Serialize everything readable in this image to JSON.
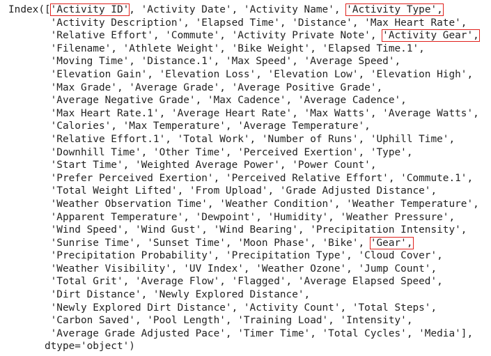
{
  "output": {
    "lines": [
      [
        {
          "t": "Index(["
        },
        {
          "t": "'Activity ID'",
          "hl": true
        },
        {
          "t": ", 'Activity Date', 'Activity Name', "
        },
        {
          "t": "'Activity Type',",
          "hl": true
        }
      ],
      [
        {
          "t": "       'Activity Description', 'Elapsed Time', 'Distance', 'Max Heart Rate',"
        }
      ],
      [
        {
          "t": "       'Relative Effort', 'Commute', 'Activity Private Note', "
        },
        {
          "t": "'Activity Gear',",
          "hl": true
        }
      ],
      [
        {
          "t": "       'Filename', 'Athlete Weight', 'Bike Weight', 'Elapsed Time.1',"
        }
      ],
      [
        {
          "t": "       'Moving Time', 'Distance.1', 'Max Speed', 'Average Speed',"
        }
      ],
      [
        {
          "t": "       'Elevation Gain', 'Elevation Loss', 'Elevation Low', 'Elevation High',"
        }
      ],
      [
        {
          "t": "       'Max Grade', 'Average Grade', 'Average Positive Grade',"
        }
      ],
      [
        {
          "t": "       'Average Negative Grade', 'Max Cadence', 'Average Cadence',"
        }
      ],
      [
        {
          "t": "       'Max Heart Rate.1', 'Average Heart Rate', 'Max Watts', 'Average Watts',"
        }
      ],
      [
        {
          "t": "       'Calories', 'Max Temperature', 'Average Temperature',"
        }
      ],
      [
        {
          "t": "       'Relative Effort.1', 'Total Work', 'Number of Runs', 'Uphill Time',"
        }
      ],
      [
        {
          "t": "       'Downhill Time', 'Other Time', 'Perceived Exertion', 'Type',"
        }
      ],
      [
        {
          "t": "       'Start Time', 'Weighted Average Power', 'Power Count',"
        }
      ],
      [
        {
          "t": "       'Prefer Perceived Exertion', 'Perceived Relative Effort', 'Commute.1',"
        }
      ],
      [
        {
          "t": "       'Total Weight Lifted', 'From Upload', 'Grade Adjusted Distance',"
        }
      ],
      [
        {
          "t": "       'Weather Observation Time', 'Weather Condition', 'Weather Temperature',"
        }
      ],
      [
        {
          "t": "       'Apparent Temperature', 'Dewpoint', 'Humidity', 'Weather Pressure',"
        }
      ],
      [
        {
          "t": "       'Wind Speed', 'Wind Gust', 'Wind Bearing', 'Precipitation Intensity',"
        }
      ],
      [
        {
          "t": "       'Sunrise Time', 'Sunset Time', 'Moon Phase', 'Bike', "
        },
        {
          "t": "'Gear',",
          "hl": true
        }
      ],
      [
        {
          "t": "       'Precipitation Probability', 'Precipitation Type', 'Cloud Cover',"
        }
      ],
      [
        {
          "t": "       'Weather Visibility', 'UV Index', 'Weather Ozone', 'Jump Count',"
        }
      ],
      [
        {
          "t": "       'Total Grit', 'Average Flow', 'Flagged', 'Average Elapsed Speed',"
        }
      ],
      [
        {
          "t": "       'Dirt Distance', 'Newly Explored Distance',"
        }
      ],
      [
        {
          "t": "       'Newly Explored Dirt Distance', 'Activity Count', 'Total Steps',"
        }
      ],
      [
        {
          "t": "       'Carbon Saved', 'Pool Length', 'Training Load', 'Intensity',"
        }
      ],
      [
        {
          "t": "       'Average Grade Adjusted Pace', 'Timer Time', 'Total Cycles', 'Media'],"
        }
      ],
      [
        {
          "t": "      dtype='object')"
        }
      ]
    ]
  },
  "colors": {
    "text": "#222222",
    "highlight_border": "#e0201b",
    "background": "#ffffff"
  }
}
